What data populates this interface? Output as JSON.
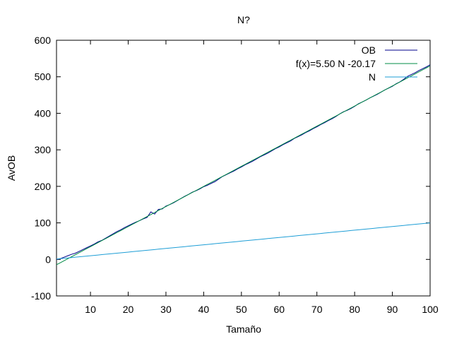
{
  "chart_data": {
    "type": "line",
    "title": "N?",
    "xlabel": "Tamaño",
    "ylabel": "AvOB",
    "xlim": [
      1,
      100
    ],
    "ylim": [
      -100,
      600
    ],
    "xticks": [
      10,
      20,
      30,
      40,
      50,
      60,
      70,
      80,
      90,
      100
    ],
    "yticks": [
      -100,
      0,
      100,
      200,
      300,
      400,
      500,
      600
    ],
    "grid": false,
    "legend": "top-right",
    "series": [
      {
        "name": "OB",
        "color": "#00008b",
        "x": [
          1,
          2,
          3,
          4,
          5,
          6,
          7,
          8,
          9,
          10,
          11,
          12,
          13,
          14,
          15,
          16,
          17,
          18,
          19,
          20,
          21,
          22,
          23,
          24,
          25,
          26,
          27,
          28,
          29,
          30,
          31,
          32,
          33,
          34,
          35,
          36,
          37,
          38,
          39,
          40,
          41,
          42,
          43,
          44,
          45,
          46,
          47,
          48,
          49,
          50,
          51,
          52,
          53,
          54,
          55,
          56,
          57,
          58,
          59,
          60,
          61,
          62,
          63,
          64,
          65,
          66,
          67,
          68,
          69,
          70,
          71,
          72,
          73,
          74,
          75,
          76,
          77,
          78,
          79,
          80,
          81,
          82,
          83,
          84,
          85,
          86,
          87,
          88,
          89,
          90,
          91,
          92,
          93,
          94,
          95,
          96,
          97,
          98,
          99,
          100
        ],
        "y": [
          0,
          2,
          6,
          10,
          14,
          17,
          22,
          27,
          32,
          37,
          42,
          48,
          52,
          58,
          64,
          70,
          76,
          81,
          87,
          92,
          97,
          102,
          106,
          111,
          115,
          130,
          124,
          137,
          138,
          146,
          150,
          155,
          161,
          167,
          173,
          178,
          184,
          188,
          193,
          199,
          203,
          208,
          213,
          220,
          227,
          232,
          237,
          242,
          248,
          253,
          259,
          264,
          269,
          275,
          281,
          286,
          291,
          297,
          303,
          308,
          314,
          319,
          324,
          331,
          336,
          341,
          347,
          352,
          358,
          363,
          369,
          374,
          380,
          385,
          391,
          398,
          404,
          408,
          413,
          419,
          426,
          431,
          436,
          442,
          447,
          452,
          458,
          464,
          469,
          474,
          481,
          486,
          493,
          501,
          506,
          511,
          517,
          522,
          527,
          533
        ]
      },
      {
        "name": "f(x)=5.50 N -20.17",
        "color": "#008b45",
        "fit": {
          "slope": 5.5,
          "intercept": -20.17
        }
      },
      {
        "name": "N",
        "color": "#1e9ed6",
        "fit": {
          "slope": 1,
          "intercept": 0
        }
      }
    ]
  }
}
